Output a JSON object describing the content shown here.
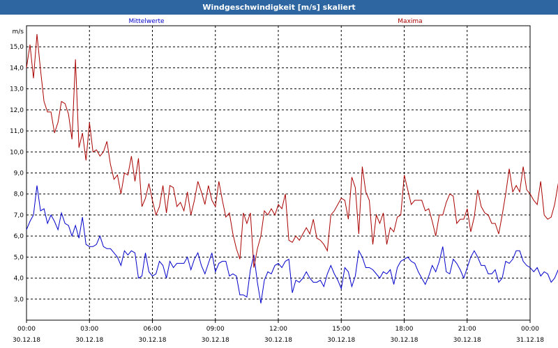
{
  "window": {
    "title": "Windgeschwindigkeit [m/s] skaliert"
  },
  "chart_data": {
    "type": "line",
    "title": "Windgeschwindigkeit [m/s] skaliert",
    "ylabel": "m/s",
    "ylim": [
      2.0,
      16.0
    ],
    "yticks": [
      "3,0",
      "4,0",
      "5,0",
      "6,0",
      "7,0",
      "8,0",
      "9,0",
      "10,0",
      "11,0",
      "12,0",
      "13,0",
      "14,0",
      "15,0"
    ],
    "xlim": [
      0,
      24
    ],
    "xticks": [
      {
        "time": "00:00",
        "date": "30.12.18"
      },
      {
        "time": "03:00",
        "date": "30.12.18"
      },
      {
        "time": "06:00",
        "date": "30.12.18"
      },
      {
        "time": "09:00",
        "date": "30.12.18"
      },
      {
        "time": "12:00",
        "date": "30.12.18"
      },
      {
        "time": "15:00",
        "date": "30.12.18"
      },
      {
        "time": "18:00",
        "date": "30.12.18"
      },
      {
        "time": "21:00",
        "date": "30.12.18"
      },
      {
        "time": "00:00",
        "date": "31.12.18"
      }
    ],
    "grid": true,
    "x_step_hours": 0.1667,
    "series": [
      {
        "name": "Mittelwerte",
        "color": "#0000cc",
        "values": [
          6.3,
          6.7,
          7.0,
          8.4,
          7.2,
          7.3,
          6.6,
          7.0,
          6.7,
          6.3,
          7.1,
          6.6,
          6.5,
          6.0,
          6.5,
          5.9,
          6.9,
          5.6,
          5.5,
          5.5,
          5.6,
          6.0,
          5.5,
          5.4,
          5.4,
          5.2,
          5.0,
          4.6,
          5.3,
          5.1,
          5.3,
          5.2,
          4.0,
          4.1,
          5.2,
          4.3,
          4.1,
          4.2,
          4.8,
          4.6,
          4.0,
          4.8,
          4.5,
          4.7,
          4.7,
          4.7,
          5.0,
          4.4,
          4.9,
          5.2,
          4.6,
          4.2,
          4.7,
          5.2,
          4.3,
          4.7,
          4.8,
          4.8,
          4.1,
          4.2,
          4.1,
          3.2,
          3.2,
          3.1,
          4.4,
          5.1,
          3.8,
          2.8,
          3.9,
          4.3,
          4.2,
          4.6,
          4.7,
          4.5,
          4.8,
          4.9,
          3.3,
          3.9,
          3.8,
          4.0,
          4.3,
          4.0,
          3.8,
          3.8,
          3.9,
          3.6,
          4.2,
          4.6,
          4.2,
          3.9,
          3.5,
          4.5,
          4.3,
          3.6,
          4.1,
          5.3,
          5.0,
          4.5,
          4.5,
          4.4,
          4.2,
          4.0,
          4.3,
          4.2,
          4.4,
          3.7,
          4.5,
          4.8,
          4.9,
          5.0,
          4.8,
          4.7,
          4.3,
          4.0,
          3.7,
          4.1,
          4.6,
          4.3,
          4.8,
          5.5,
          4.3,
          4.2,
          4.9,
          4.7,
          4.4,
          4.0,
          4.5,
          5.0,
          5.3,
          5.0,
          4.6,
          4.6,
          4.2,
          4.2,
          4.4,
          3.8,
          4.0,
          4.8,
          4.7,
          4.9,
          5.3,
          5.3,
          4.8,
          4.6,
          4.5,
          4.3,
          4.5,
          4.1,
          4.3,
          4.2,
          3.8,
          4.0,
          4.4
        ]
      },
      {
        "name": "Maxima",
        "color": "#aa0000",
        "values": [
          14.0,
          15.1,
          13.5,
          15.6,
          13.9,
          12.4,
          11.9,
          11.9,
          10.9,
          11.4,
          12.4,
          12.3,
          11.8,
          10.6,
          14.4,
          10.2,
          10.9,
          9.6,
          11.4,
          10.0,
          10.1,
          9.8,
          10.0,
          10.5,
          9.4,
          8.7,
          8.9,
          8.0,
          9.0,
          8.9,
          9.8,
          8.6,
          9.7,
          7.4,
          7.8,
          8.5,
          7.7,
          7.0,
          7.4,
          8.4,
          7.1,
          8.4,
          8.3,
          7.4,
          7.6,
          7.2,
          8.1,
          7.0,
          7.7,
          8.6,
          8.1,
          7.5,
          8.4,
          7.7,
          7.4,
          8.6,
          7.7,
          6.9,
          7.1,
          6.1,
          5.4,
          4.9,
          7.1,
          6.6,
          7.1,
          4.5,
          5.4,
          6.0,
          7.2,
          7.0,
          7.3,
          7.0,
          7.5,
          7.3,
          8.0,
          5.8,
          5.7,
          6.0,
          5.8,
          6.1,
          6.4,
          6.1,
          6.8,
          5.9,
          5.8,
          5.6,
          5.3,
          7.0,
          7.2,
          7.5,
          7.8,
          7.7,
          6.8,
          8.8,
          8.3,
          6.1,
          9.3,
          8.1,
          7.7,
          5.6,
          7.0,
          6.6,
          7.1,
          5.6,
          6.4,
          6.2,
          6.9,
          7.0,
          8.9,
          8.2,
          7.5,
          7.7,
          7.7,
          7.7,
          7.2,
          7.3,
          6.7,
          6.0,
          7.0,
          7.0,
          7.6,
          8.0,
          7.9,
          6.6,
          6.8,
          6.8,
          7.3,
          6.2,
          6.9,
          8.2,
          7.4,
          7.1,
          7.0,
          6.6,
          6.6,
          6.1,
          7.0,
          8.0,
          9.2,
          8.1,
          8.4,
          8.1,
          9.3,
          8.2,
          8.0,
          7.7,
          7.5,
          8.6,
          7.0,
          6.8,
          6.9,
          7.5,
          8.5
        ]
      }
    ]
  }
}
